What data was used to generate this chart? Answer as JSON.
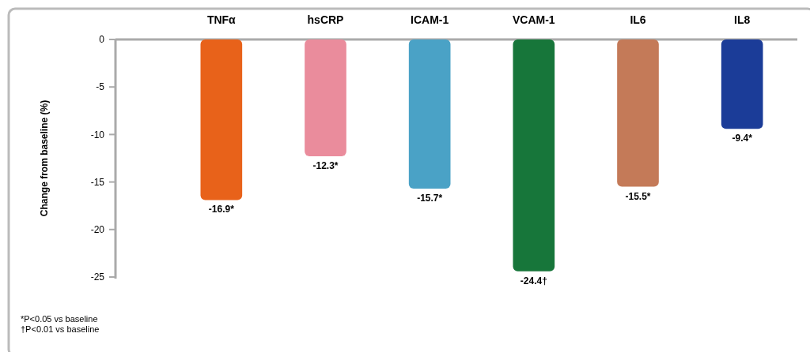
{
  "chart_data": {
    "type": "bar",
    "ylabel": "Change from baseline (%)",
    "categories": [
      "TNFα",
      "hsCRP",
      "ICAM-1",
      "VCAM-1",
      "IL6",
      "IL8"
    ],
    "values": [
      -16.9,
      -12.3,
      -15.7,
      -24.4,
      -15.5,
      -9.4
    ],
    "colors": [
      "#e8621a",
      "#ea8c9c",
      "#4aa2c6",
      "#17763a",
      "#c47a58",
      "#1b3c98"
    ],
    "value_labels": [
      "-16.9*",
      "-12.3*",
      "-15.7*",
      "-24.4†",
      "-15.5*",
      "-9.4*"
    ],
    "ylim": [
      -25,
      0
    ],
    "yticks": [
      0,
      -5,
      -10,
      -15,
      -20,
      -25
    ],
    "grid": false,
    "annotations": [
      "*P<0.05 vs baseline",
      "†P<0.01 vs baseline"
    ]
  }
}
